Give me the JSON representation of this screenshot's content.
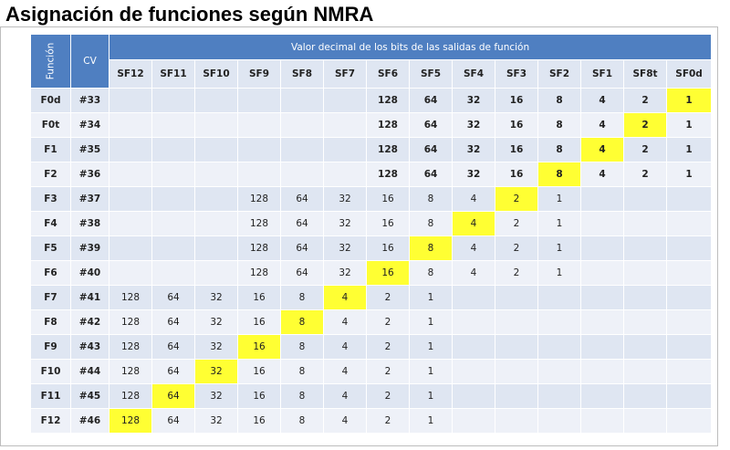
{
  "title": "Asignación de funciones según NMRA",
  "header": {
    "function_label": "Función",
    "cv_label": "CV",
    "group_label": "Valor decimal de los bits de las salidas de función",
    "columns": [
      "SF12",
      "SF11",
      "SF10",
      "SF9",
      "SF8",
      "SF7",
      "SF6",
      "SF5",
      "SF4",
      "SF3",
      "SF2",
      "SF1",
      "SF8t",
      "SF0d"
    ]
  },
  "colors": {
    "header": "#4f7fc1",
    "row_light": "#eef1f8",
    "row_dark": "#dfe6f2",
    "highlight": "#ffff33"
  },
  "rows": [
    {
      "fn": "F0d",
      "cv": "#33",
      "cells": [
        "",
        "",
        "",
        "",
        "",
        "",
        "128",
        "64",
        "32",
        "16",
        "8",
        "4",
        "2",
        "1"
      ],
      "highlight": 13
    },
    {
      "fn": "F0t",
      "cv": "#34",
      "cells": [
        "",
        "",
        "",
        "",
        "",
        "",
        "128",
        "64",
        "32",
        "16",
        "8",
        "4",
        "2",
        "1"
      ],
      "highlight": 12
    },
    {
      "fn": "F1",
      "cv": "#35",
      "cells": [
        "",
        "",
        "",
        "",
        "",
        "",
        "128",
        "64",
        "32",
        "16",
        "8",
        "4",
        "2",
        "1"
      ],
      "highlight": 11
    },
    {
      "fn": "F2",
      "cv": "#36",
      "cells": [
        "",
        "",
        "",
        "",
        "",
        "",
        "128",
        "64",
        "32",
        "16",
        "8",
        "4",
        "2",
        "1"
      ],
      "highlight": 10
    },
    {
      "fn": "F3",
      "cv": "#37",
      "cells": [
        "",
        "",
        "",
        "128",
        "64",
        "32",
        "16",
        "8",
        "4",
        "2",
        "1",
        "",
        "",
        ""
      ],
      "highlight": 9
    },
    {
      "fn": "F4",
      "cv": "#38",
      "cells": [
        "",
        "",
        "",
        "128",
        "64",
        "32",
        "16",
        "8",
        "4",
        "2",
        "1",
        "",
        "",
        ""
      ],
      "highlight": 8
    },
    {
      "fn": "F5",
      "cv": "#39",
      "cells": [
        "",
        "",
        "",
        "128",
        "64",
        "32",
        "16",
        "8",
        "4",
        "2",
        "1",
        "",
        "",
        ""
      ],
      "highlight": 7
    },
    {
      "fn": "F6",
      "cv": "#40",
      "cells": [
        "",
        "",
        "",
        "128",
        "64",
        "32",
        "16",
        "8",
        "4",
        "2",
        "1",
        "",
        "",
        ""
      ],
      "highlight": 6
    },
    {
      "fn": "F7",
      "cv": "#41",
      "cells": [
        "128",
        "64",
        "32",
        "16",
        "8",
        "4",
        "2",
        "1",
        "",
        "",
        "",
        "",
        "",
        ""
      ],
      "highlight": 5
    },
    {
      "fn": "F8",
      "cv": "#42",
      "cells": [
        "128",
        "64",
        "32",
        "16",
        "8",
        "4",
        "2",
        "1",
        "",
        "",
        "",
        "",
        "",
        ""
      ],
      "highlight": 4
    },
    {
      "fn": "F9",
      "cv": "#43",
      "cells": [
        "128",
        "64",
        "32",
        "16",
        "8",
        "4",
        "2",
        "1",
        "",
        "",
        "",
        "",
        "",
        ""
      ],
      "highlight": 3
    },
    {
      "fn": "F10",
      "cv": "#44",
      "cells": [
        "128",
        "64",
        "32",
        "16",
        "8",
        "4",
        "2",
        "1",
        "",
        "",
        "",
        "",
        "",
        ""
      ],
      "highlight": 2
    },
    {
      "fn": "F11",
      "cv": "#45",
      "cells": [
        "128",
        "64",
        "32",
        "16",
        "8",
        "4",
        "2",
        "1",
        "",
        "",
        "",
        "",
        "",
        ""
      ],
      "highlight": 1
    },
    {
      "fn": "F12",
      "cv": "#46",
      "cells": [
        "128",
        "64",
        "32",
        "16",
        "8",
        "4",
        "2",
        "1",
        "",
        "",
        "",
        "",
        "",
        ""
      ],
      "highlight": 0
    }
  ]
}
